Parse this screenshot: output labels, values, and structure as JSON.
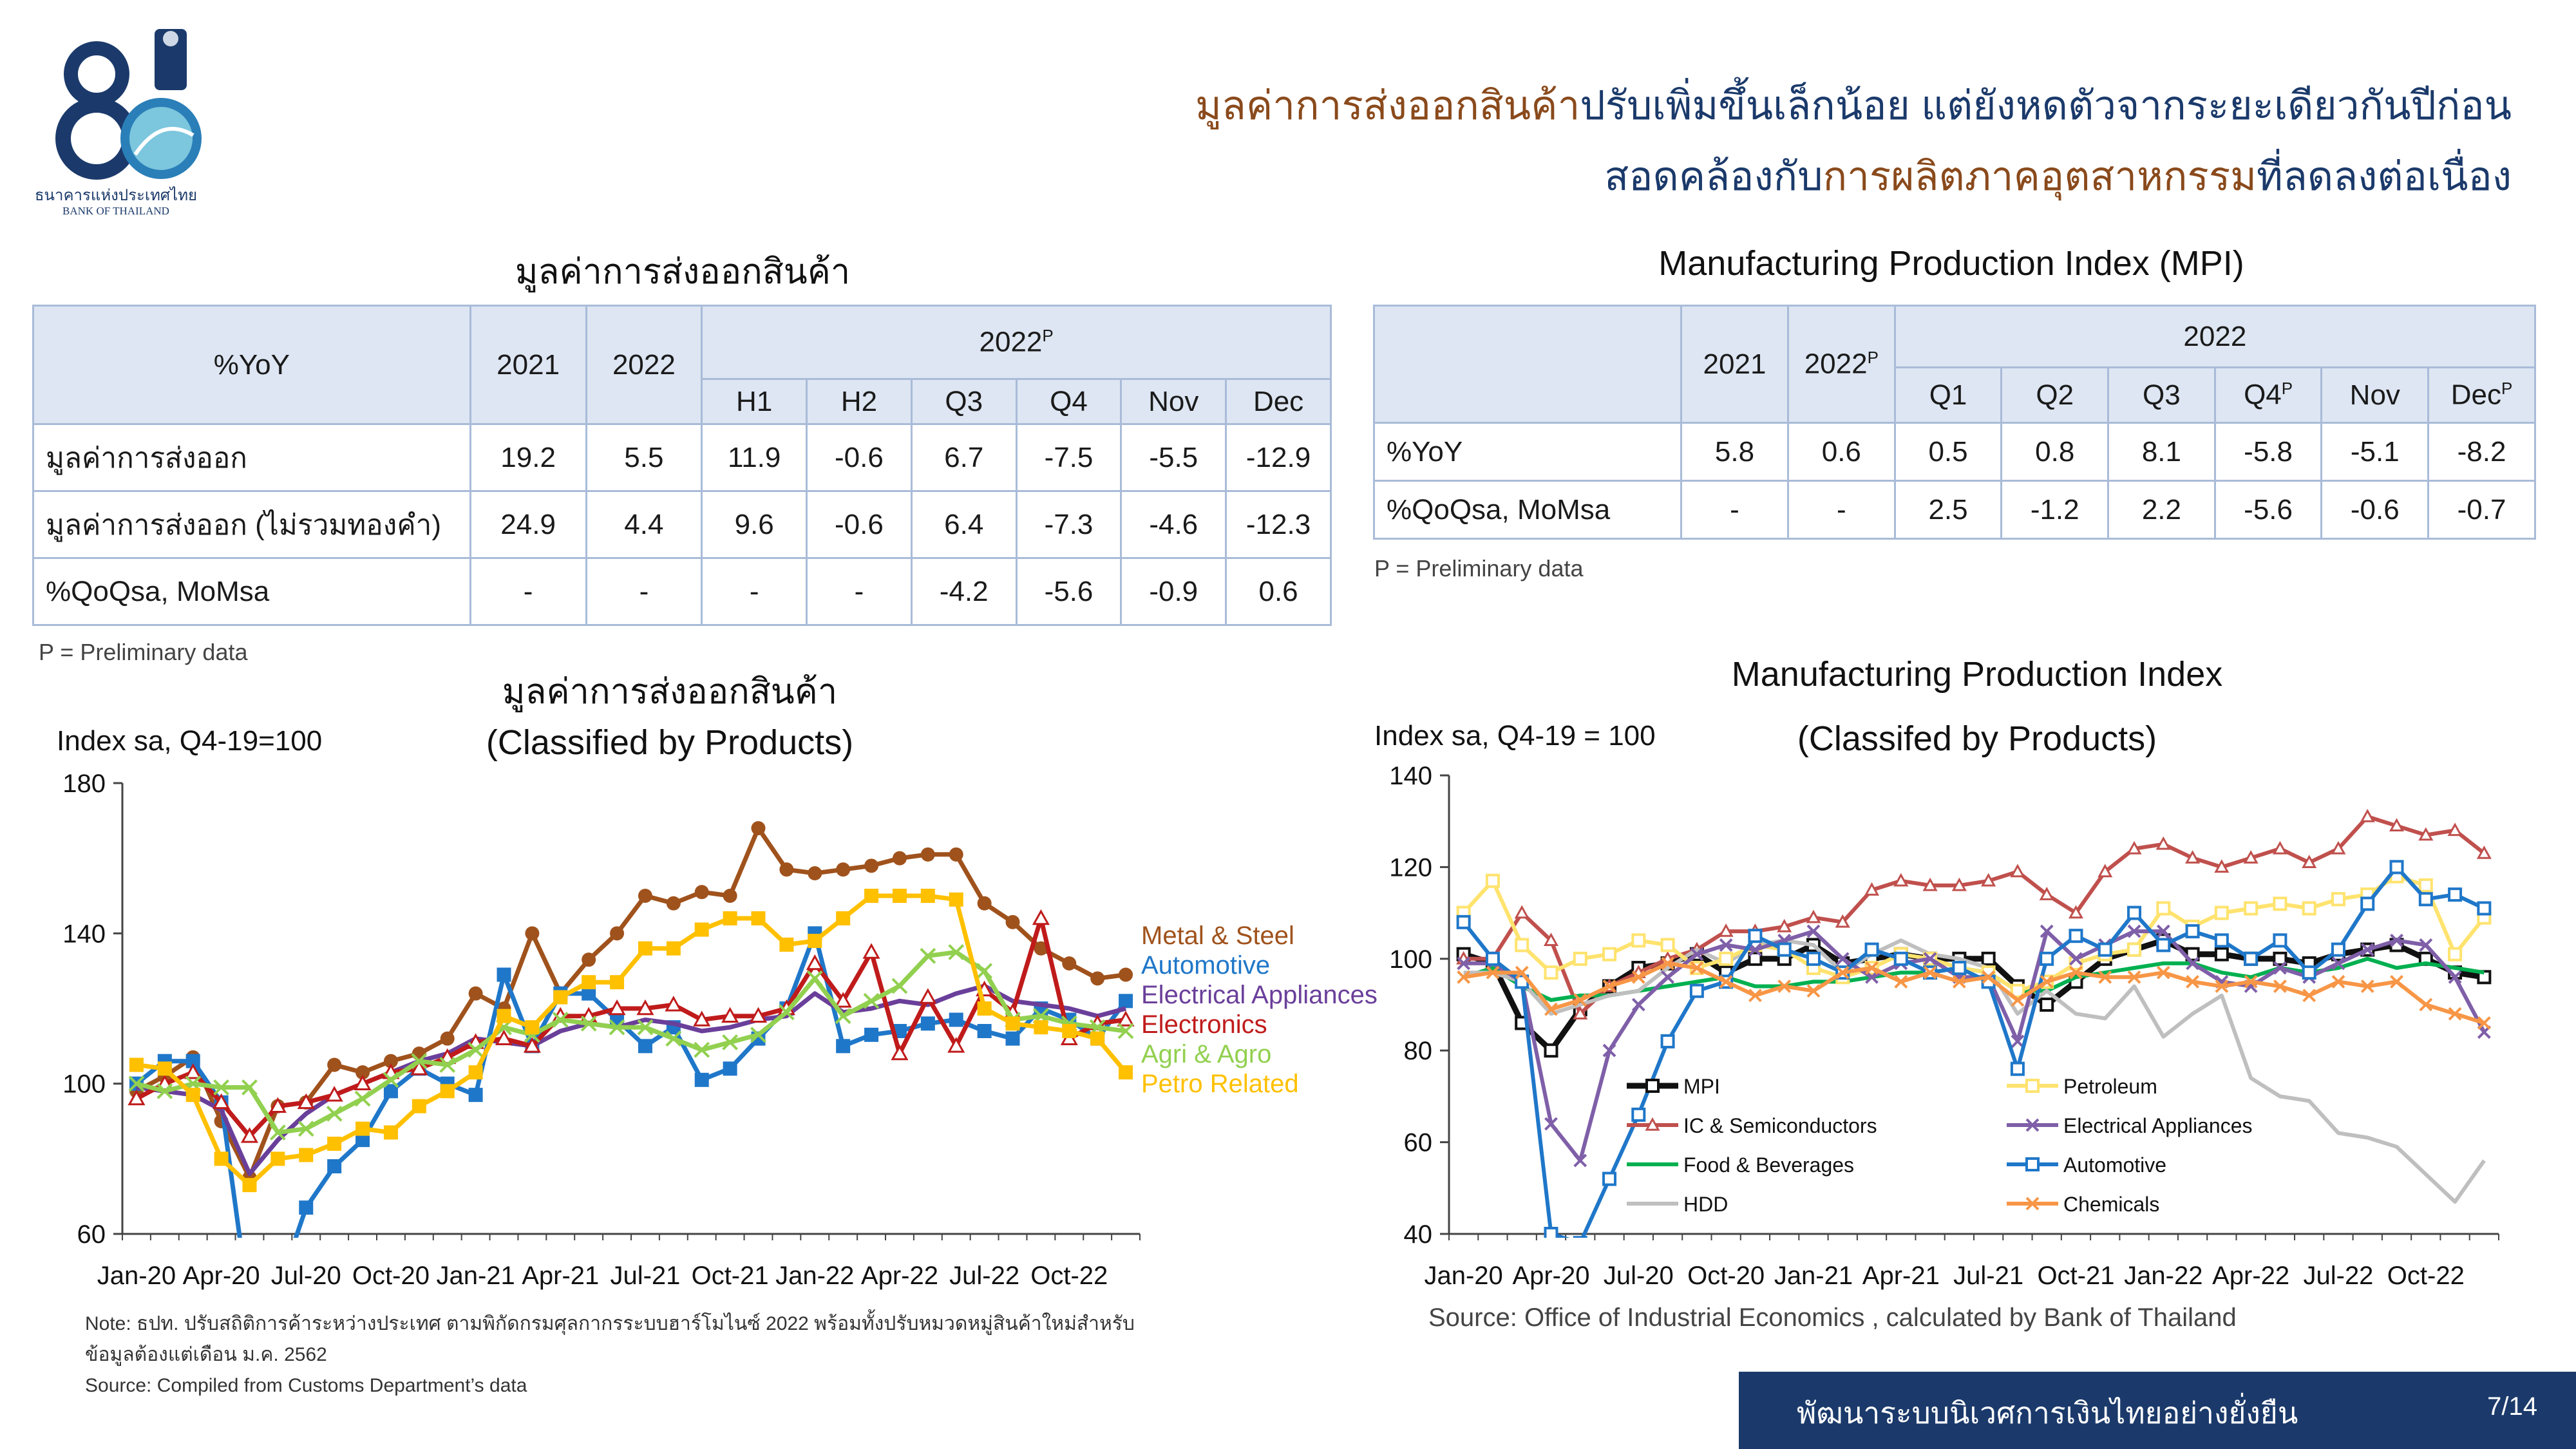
{
  "logo": {
    "number": "80",
    "name_th": "ธนาคารแห่งประเทศไทย",
    "name_en": "BANK OF THAILAND"
  },
  "headline": {
    "line1_brown": "มูลค่าการส่งออกสินค้า",
    "line1_blue": "ปรับเพิ่มขึ้นเล็กน้อย แต่ยังหดตัวจากระยะเดียวกันปีก่อน",
    "line2_blue_a": "สอดคล้องกับ",
    "line2_brown": "การผลิตภาคอุตสาหกรรม",
    "line2_blue_b": "ที่ลดลงต่อเนื่อง"
  },
  "export_table": {
    "title": "มูลค่าการส่งออกสินค้า",
    "corner": "%YoY",
    "col_2021": "2021",
    "col_2022": "2022",
    "group_header": "2022",
    "group_sup": "P",
    "subcols": [
      "H1",
      "H2",
      "Q3",
      "Q4",
      "Nov",
      "Dec"
    ],
    "rows": [
      {
        "label": "มูลค่าการส่งออก",
        "values": [
          "19.2",
          "5.5",
          "11.9",
          "-0.6",
          "6.7",
          "-7.5",
          "-5.5",
          "-12.9"
        ]
      },
      {
        "label": "มูลค่าการส่งออก (ไม่รวมทองคำ)",
        "values": [
          "24.9",
          "4.4",
          "9.6",
          "-0.6",
          "6.4",
          "-7.3",
          "-4.6",
          "-12.3"
        ]
      },
      {
        "label": "%QoQsa, MoMsa",
        "values": [
          "-",
          "-",
          "-",
          "-",
          "-4.2",
          "-5.6",
          "-0.9",
          "0.6"
        ]
      }
    ],
    "note": "P = Preliminary data"
  },
  "mpi_table": {
    "title": "Manufacturing Production Index (MPI)",
    "col_2021": "2021",
    "col_2022": "2022",
    "col_2022_sup": "P",
    "group_header": "2022",
    "subcols": [
      "Q1",
      "Q2",
      "Q3",
      "Q4",
      "Nov",
      "Dec"
    ],
    "subcol_sups": [
      "",
      "",
      "",
      "P",
      "",
      "P"
    ],
    "rows": [
      {
        "label": "%YoY",
        "values": [
          "5.8",
          "0.6",
          "0.5",
          "0.8",
          "8.1",
          "-5.8",
          "-5.1",
          "-8.2"
        ]
      },
      {
        "label": "%QoQsa, MoMsa",
        "values": [
          "-",
          "-",
          "2.5",
          "-1.2",
          "2.2",
          "-5.6",
          "-0.6",
          "-0.7"
        ]
      }
    ],
    "note": "P = Preliminary data"
  },
  "chart_data": [
    {
      "type": "line",
      "title": "มูลค่าการส่งออกสินค้า",
      "subtitle": "(Classified by Products)",
      "ylabel": "Index sa, Q4-19=100",
      "ylim": [
        60,
        180
      ],
      "yticks": [
        60,
        100,
        140,
        180
      ],
      "xticks": [
        "Jan-20",
        "Apr-20",
        "Jul-20",
        "Oct-20",
        "Jan-21",
        "Apr-21",
        "Jul-21",
        "Oct-21",
        "Jan-22",
        "Apr-22",
        "Jul-22",
        "Oct-22"
      ],
      "n_points": 36,
      "legend": "right",
      "series": [
        {
          "name": "Metal & Steel",
          "color": "#a0521c",
          "marker": "circle",
          "values": [
            98,
            102,
            107,
            90,
            75,
            94,
            95,
            105,
            103,
            106,
            108,
            112,
            124,
            120,
            140,
            124,
            133,
            140,
            150,
            148,
            151,
            150,
            168,
            157,
            156,
            157,
            158,
            160,
            161,
            161,
            148,
            143,
            136,
            132,
            128,
            129
          ]
        },
        {
          "name": "Automotive",
          "color": "#1f77c9",
          "marker": "square",
          "values": [
            100,
            106,
            106,
            95,
            40,
            45,
            67,
            78,
            85,
            98,
            104,
            100,
            97,
            129,
            110,
            124,
            124,
            117,
            110,
            115,
            101,
            104,
            112,
            120,
            140,
            110,
            113,
            114,
            116,
            117,
            114,
            112,
            120,
            117,
            112,
            122
          ]
        },
        {
          "name": "Electrical Appliances",
          "color": "#6a3f9a",
          "marker": "line",
          "values": [
            99,
            98,
            97,
            93,
            76,
            85,
            92,
            97,
            100,
            103,
            106,
            108,
            112,
            111,
            110,
            114,
            116,
            115,
            117,
            116,
            114,
            115,
            117,
            118,
            124,
            119,
            120,
            122,
            121,
            124,
            126,
            122,
            121,
            120,
            118,
            120
          ]
        },
        {
          "name": "Electronics",
          "color": "#c01b1b",
          "marker": "triangle",
          "values": [
            96,
            100,
            103,
            95,
            86,
            94,
            95,
            97,
            100,
            103,
            104,
            107,
            111,
            112,
            110,
            118,
            118,
            120,
            120,
            121,
            117,
            118,
            118,
            120,
            132,
            122,
            135,
            108,
            123,
            110,
            125,
            119,
            144,
            112,
            116,
            117
          ]
        },
        {
          "name": "Agri & Agro",
          "color": "#92d050",
          "marker": "x",
          "values": [
            100,
            98,
            100,
            99,
            99,
            87,
            88,
            92,
            96,
            101,
            106,
            105,
            109,
            115,
            113,
            117,
            116,
            115,
            115,
            112,
            109,
            111,
            113,
            119,
            128,
            118,
            122,
            126,
            134,
            135,
            130,
            117,
            118,
            116,
            115,
            114
          ]
        },
        {
          "name": "Petro Related",
          "color": "#ffc000",
          "marker": "square",
          "values": [
            105,
            104,
            97,
            80,
            73,
            80,
            81,
            84,
            88,
            87,
            94,
            98,
            103,
            118,
            115,
            123,
            127,
            127,
            136,
            136,
            141,
            144,
            144,
            137,
            138,
            144,
            150,
            150,
            150,
            149,
            120,
            116,
            115,
            114,
            112,
            103
          ]
        }
      ]
    },
    {
      "type": "line",
      "title": "Manufacturing Production Index",
      "subtitle": "(Classifed by Products)",
      "ylabel": "Index sa, Q4-19 = 100",
      "ylim": [
        40,
        140
      ],
      "yticks": [
        40,
        60,
        80,
        100,
        120,
        140
      ],
      "xticks": [
        "Jan-20",
        "Apr-20",
        "Jul-20",
        "Oct-20",
        "Jan-21",
        "Apr-21",
        "Jul-21",
        "Oct-21",
        "Jan-22",
        "Apr-22",
        "Jul-22",
        "Oct-22"
      ],
      "n_points": 36,
      "legend": "bottom-inside",
      "series": [
        {
          "name": "MPI",
          "color": "#111111",
          "marker": "square-open",
          "values": [
            101,
            99,
            86,
            80,
            89,
            94,
            98,
            99,
            101,
            97,
            100,
            100,
            103,
            99,
            100,
            101,
            100,
            100,
            100,
            94,
            90,
            95,
            100,
            102,
            104,
            101,
            101,
            100,
            100,
            99,
            101,
            102,
            103,
            100,
            97,
            96
          ]
        },
        {
          "name": "IC & Semiconductors",
          "color": "#c0504d",
          "marker": "triangle",
          "values": [
            100,
            100,
            110,
            104,
            88,
            94,
            97,
            100,
            102,
            106,
            106,
            107,
            109,
            108,
            115,
            117,
            116,
            116,
            117,
            119,
            114,
            110,
            119,
            124,
            125,
            122,
            120,
            122,
            124,
            121,
            124,
            131,
            129,
            127,
            128,
            123
          ]
        },
        {
          "name": "Food & Beverages",
          "color": "#00b050",
          "marker": "none",
          "values": [
            96,
            98,
            94,
            91,
            92,
            92,
            93,
            94,
            95,
            96,
            94,
            94,
            95,
            95,
            96,
            97,
            97,
            98,
            97,
            93,
            93,
            96,
            97,
            98,
            99,
            99,
            97,
            96,
            98,
            97,
            98,
            100,
            98,
            99,
            98,
            97
          ]
        },
        {
          "name": "HDD",
          "color": "#bfbfbf",
          "marker": "none",
          "values": [
            97,
            97,
            95,
            88,
            90,
            92,
            93,
            98,
            102,
            99,
            103,
            104,
            103,
            97,
            101,
            104,
            101,
            100,
            98,
            88,
            93,
            88,
            87,
            94,
            83,
            88,
            92,
            74,
            70,
            69,
            62,
            61,
            59,
            53,
            47,
            56
          ]
        },
        {
          "name": "Petroleum",
          "color": "#ffe36e",
          "marker": "square-open",
          "values": [
            110,
            117,
            103,
            97,
            100,
            101,
            104,
            103,
            98,
            100,
            103,
            102,
            98,
            96,
            98,
            101,
            100,
            98,
            97,
            93,
            95,
            99,
            101,
            102,
            111,
            107,
            110,
            111,
            112,
            111,
            113,
            114,
            118,
            116,
            101,
            109
          ]
        },
        {
          "name": "Electrical Appliances",
          "color": "#7f5fa8",
          "marker": "x",
          "values": [
            99,
            99,
            95,
            64,
            56,
            80,
            90,
            96,
            101,
            103,
            102,
            104,
            106,
            100,
            96,
            99,
            100,
            96,
            96,
            82,
            106,
            100,
            103,
            106,
            106,
            99,
            95,
            94,
            98,
            96,
            99,
            102,
            104,
            103,
            96,
            84
          ]
        },
        {
          "name": "Automotive",
          "color": "#1f77c9",
          "marker": "square-open",
          "values": [
            108,
            100,
            95,
            40,
            38,
            52,
            66,
            82,
            93,
            95,
            105,
            102,
            100,
            97,
            102,
            100,
            97,
            98,
            95,
            76,
            100,
            105,
            102,
            110,
            103,
            106,
            104,
            100,
            104,
            97,
            102,
            112,
            120,
            113,
            114,
            111
          ]
        },
        {
          "name": "Chemicals",
          "color": "#f79646",
          "marker": "x",
          "values": [
            96,
            97,
            97,
            89,
            91,
            94,
            96,
            99,
            98,
            95,
            92,
            94,
            93,
            97,
            98,
            95,
            97,
            95,
            96,
            91,
            95,
            97,
            96,
            96,
            97,
            95,
            94,
            95,
            94,
            92,
            95,
            94,
            95,
            90,
            88,
            86
          ]
        }
      ]
    }
  ],
  "left_chart_note": {
    "line1": "Note: ธปท. ปรับสถิติการค้าระหว่างประเทศ ตามพิกัดกรมศุลกากรระบบฮาร์โมไนซ์ 2022 พร้อมทั้งปรับหมวดหมู่สินค้าใหม่สำหรับ",
    "line2": "ข้อมูลต้องแต่เดือน ม.ค. 2562",
    "line3": "Source: Compiled from Customs Department’s data"
  },
  "right_chart_source": "Source: Office of Industrial Economics , calculated by Bank of Thailand",
  "footer": {
    "text": "พัฒนาระบบนิเวศการเงินไทยอย่างยั่งยืน",
    "page": "7/14"
  },
  "colors": {
    "navy": "#1b3a6b",
    "brown": "#8a4a1c",
    "table_border": "#a9bbd8",
    "table_header": "#dde6f2"
  }
}
